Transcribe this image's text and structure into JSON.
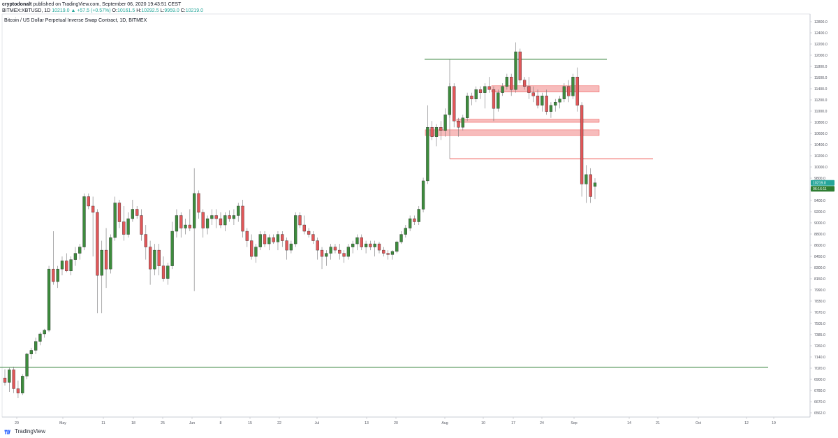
{
  "header": {
    "author": "cryptodonalt",
    "published_text": " published on TradingView.com, September 06, 2020 19:43:51 CEST",
    "symbol_line": "BITMEX:XBTUSD, 1D",
    "last": "10219.0",
    "change": "▲ +57.5 (+0.57%)",
    "o_label": "O:",
    "o_value": "10161.5",
    "h_label": "H:",
    "h_value": "10292.5",
    "l_label": "L:",
    "l_value": "9959.0",
    "c_label": "C:",
    "c_value": "10219.0"
  },
  "footer": {
    "brand": "TradingView"
  },
  "colors": {
    "up": "#26a69a",
    "up_body": "#3d8b3d",
    "down": "#e15759",
    "wick": "#737375",
    "support": "#2e7d32",
    "resistance": "#ef5350",
    "zone_fill": "#f4a6a6"
  },
  "chart_data": {
    "type": "candlestick",
    "title": "Bitcoin / US Dollar Perpetual Inverse Swap Contract, 1D, BITMEX",
    "ylim": [
      6500,
      12900
    ],
    "price_axis": [
      "12800.0",
      "12400.0",
      "12200.0",
      "12000.0",
      "11800.0",
      "11600.0",
      "11400.0",
      "11200.0",
      "11000.0",
      "10800.0",
      "10600.0",
      "10400.0",
      "10200.0",
      "10000.0",
      "9800.0",
      "9600.0",
      "9400.0",
      "9200.0",
      "9000.0",
      "8800.0",
      "8600.0",
      "8450.0",
      "8300.0",
      "8150.0",
      "7990.0",
      "7830.0",
      "7670.0",
      "7505.0",
      "7385.0",
      "7260.0",
      "7140.0",
      "7020.0",
      "6900.0",
      "6780.0",
      "6670.0",
      "6562.0"
    ],
    "x_ticks": [
      "20",
      "May",
      "11",
      "18",
      "25",
      "Jun",
      "8",
      "15",
      "22",
      "Jul",
      "13",
      "20",
      "Aug",
      "10",
      "17",
      "24",
      "Sep",
      "14",
      "21",
      "Oct",
      "12",
      "19"
    ],
    "last_price_label": "10219.0",
    "countdown_label": "06:16:11",
    "candles": [
      [
        7120,
        7260,
        7000,
        7050
      ],
      [
        7050,
        7280,
        6900,
        7250
      ],
      [
        7250,
        7300,
        6880,
        6950
      ],
      [
        6950,
        7080,
        6800,
        6880
      ],
      [
        6880,
        7180,
        6850,
        7150
      ],
      [
        7150,
        7520,
        7100,
        7500
      ],
      [
        7500,
        7600,
        7420,
        7560
      ],
      [
        7560,
        7760,
        7500,
        7700
      ],
      [
        7700,
        7850,
        7640,
        7820
      ],
      [
        7820,
        7900,
        7760,
        7880
      ],
      [
        7880,
        8900,
        7850,
        8850
      ],
      [
        8850,
        9450,
        8600,
        8650
      ],
      [
        8650,
        8900,
        8550,
        8850
      ],
      [
        8850,
        9050,
        8750,
        8980
      ],
      [
        8980,
        9100,
        8800,
        8820
      ],
      [
        8820,
        9050,
        8750,
        9000
      ],
      [
        9000,
        9200,
        8900,
        9100
      ],
      [
        9100,
        9250,
        9000,
        9200
      ],
      [
        9200,
        10050,
        9150,
        10000
      ],
      [
        10000,
        10050,
        9800,
        9850
      ],
      [
        9850,
        10000,
        9050,
        9750
      ],
      [
        9750,
        9800,
        8150,
        8750
      ],
      [
        8750,
        9300,
        8150,
        9150
      ],
      [
        9150,
        9500,
        8550,
        8850
      ],
      [
        8850,
        9400,
        8780,
        9350
      ],
      [
        9350,
        10000,
        9300,
        9900
      ],
      [
        9900,
        9950,
        9500,
        9600
      ],
      [
        9600,
        9850,
        9300,
        9400
      ],
      [
        9400,
        9750,
        9350,
        9650
      ],
      [
        9650,
        9950,
        9600,
        9800
      ],
      [
        9800,
        9850,
        9650,
        9700
      ],
      [
        9700,
        9800,
        9300,
        9400
      ],
      [
        9400,
        9550,
        9000,
        9200
      ],
      [
        9200,
        9300,
        8600,
        8850
      ],
      [
        8850,
        9250,
        8750,
        9150
      ],
      [
        9150,
        9250,
        8750,
        8900
      ],
      [
        8900,
        9050,
        8650,
        8700
      ],
      [
        8700,
        8950,
        8600,
        8900
      ],
      [
        8900,
        9600,
        8850,
        9450
      ],
      [
        9450,
        9800,
        9350,
        9700
      ],
      [
        9700,
        9750,
        9350,
        9500
      ],
      [
        9500,
        9650,
        9400,
        9550
      ],
      [
        9550,
        9800,
        9450,
        9500
      ],
      [
        9500,
        10450,
        8500,
        10050
      ],
      [
        10050,
        10100,
        9650,
        9750
      ],
      [
        9750,
        9800,
        9350,
        9500
      ],
      [
        9500,
        9700,
        9400,
        9650
      ],
      [
        9650,
        9800,
        9550,
        9700
      ],
      [
        9700,
        9800,
        9500,
        9650
      ],
      [
        9650,
        9750,
        9500,
        9550
      ],
      [
        9550,
        9750,
        9450,
        9700
      ],
      [
        9700,
        9780,
        9600,
        9650
      ],
      [
        9650,
        9800,
        9550,
        9700
      ],
      [
        9700,
        9900,
        9600,
        9850
      ],
      [
        9850,
        9950,
        9350,
        9450
      ],
      [
        9450,
        9500,
        9200,
        9300
      ],
      [
        9300,
        9400,
        9000,
        9050
      ],
      [
        9050,
        9250,
        8950,
        9200
      ],
      [
        9200,
        9450,
        9150,
        9400
      ],
      [
        9400,
        9450,
        9200,
        9250
      ],
      [
        9250,
        9400,
        9150,
        9350
      ],
      [
        9350,
        9400,
        9250,
        9280
      ],
      [
        9280,
        9450,
        9150,
        9400
      ],
      [
        9400,
        9450,
        9200,
        9300
      ],
      [
        9300,
        9350,
        9000,
        9150
      ],
      [
        9150,
        9300,
        9100,
        9250
      ],
      [
        9250,
        9750,
        9200,
        9700
      ],
      [
        9700,
        9750,
        9500,
        9550
      ],
      [
        9550,
        9700,
        9400,
        9450
      ],
      [
        9450,
        9500,
        9350,
        9400
      ],
      [
        9400,
        9450,
        9250,
        9300
      ],
      [
        9300,
        9350,
        9000,
        9150
      ],
      [
        9150,
        9200,
        8850,
        9050
      ],
      [
        9050,
        9150,
        8900,
        9100
      ],
      [
        9100,
        9250,
        9000,
        9200
      ],
      [
        9200,
        9250,
        9100,
        9150
      ],
      [
        9150,
        9250,
        9000,
        9100
      ],
      [
        9100,
        9150,
        8950,
        9050
      ],
      [
        9050,
        9250,
        9000,
        9200
      ],
      [
        9200,
        9300,
        9100,
        9250
      ],
      [
        9250,
        9400,
        9150,
        9350
      ],
      [
        9350,
        9400,
        9150,
        9200
      ],
      [
        9200,
        9300,
        9100,
        9250
      ],
      [
        9250,
        9300,
        9150,
        9200
      ],
      [
        9200,
        9300,
        9050,
        9250
      ],
      [
        9250,
        9280,
        9100,
        9150
      ],
      [
        9150,
        9200,
        9050,
        9100
      ],
      [
        9100,
        9150,
        9000,
        9080
      ],
      [
        9080,
        9150,
        9000,
        9130
      ],
      [
        9130,
        9300,
        9100,
        9280
      ],
      [
        9280,
        9450,
        9250,
        9400
      ],
      [
        9400,
        9550,
        9350,
        9500
      ],
      [
        9500,
        9700,
        9450,
        9650
      ],
      [
        9650,
        9700,
        9550,
        9600
      ],
      [
        9600,
        9850,
        9550,
        9800
      ],
      [
        9800,
        10300,
        9750,
        10250
      ],
      [
        10250,
        11450,
        10200,
        11100
      ],
      [
        11100,
        11200,
        10900,
        10950
      ],
      [
        10950,
        11150,
        10800,
        11100
      ],
      [
        11100,
        11200,
        10900,
        11050
      ],
      [
        11050,
        11400,
        10950,
        11300
      ],
      [
        11300,
        11800,
        11250,
        11750
      ],
      [
        11750,
        11800,
        11100,
        11200
      ],
      [
        11200,
        11250,
        10950,
        11100
      ],
      [
        11100,
        11300,
        11050,
        11250
      ],
      [
        11250,
        11650,
        11200,
        11600
      ],
      [
        11600,
        11650,
        11450,
        11550
      ],
      [
        11550,
        11750,
        11500,
        11700
      ],
      [
        11700,
        11750,
        11550,
        11650
      ],
      [
        11650,
        11800,
        11400,
        11750
      ],
      [
        11750,
        11900,
        11650,
        11700
      ],
      [
        11700,
        11750,
        11200,
        11400
      ],
      [
        11400,
        11700,
        11350,
        11650
      ],
      [
        11650,
        11800,
        11600,
        11750
      ],
      [
        11750,
        11950,
        11700,
        11900
      ],
      [
        11900,
        11950,
        11600,
        11700
      ],
      [
        11700,
        12450,
        11650,
        12300
      ],
      [
        12300,
        12350,
        11800,
        11850
      ],
      [
        11850,
        11900,
        11700,
        11750
      ],
      [
        11750,
        11900,
        11550,
        11650
      ],
      [
        11650,
        11750,
        11500,
        11600
      ],
      [
        11600,
        11700,
        11400,
        11450
      ],
      [
        11450,
        11650,
        11350,
        11600
      ],
      [
        11600,
        11700,
        11300,
        11350
      ],
      [
        11350,
        11500,
        11250,
        11450
      ],
      [
        11450,
        11550,
        11350,
        11500
      ],
      [
        11500,
        11600,
        11400,
        11550
      ],
      [
        11550,
        11800,
        11500,
        11750
      ],
      [
        11750,
        11850,
        11500,
        11600
      ],
      [
        11600,
        11950,
        11550,
        11900
      ],
      [
        11900,
        12050,
        11350,
        11450
      ],
      [
        11450,
        11500,
        10000,
        10200
      ],
      [
        10200,
        10500,
        9900,
        10350
      ],
      [
        10350,
        10450,
        9900,
        10000
      ],
      [
        10161.5,
        10292.5,
        9959,
        10219
      ]
    ],
    "series": [
      {
        "kind": "hline",
        "price": 7290,
        "from": 0,
        "to": 1100,
        "color": "#2e7d32"
      },
      {
        "kind": "hline",
        "price": 12180,
        "from": 608,
        "to": 869,
        "color": "#2e7d32"
      },
      {
        "kind": "hline",
        "price": 10600,
        "from": 644,
        "to": 935,
        "color": "#ef5350"
      },
      {
        "kind": "zone",
        "top": 11760,
        "bottom": 11660,
        "from": 704,
        "to": 858
      },
      {
        "kind": "zone",
        "top": 11230,
        "bottom": 11180,
        "from": 654,
        "to": 858
      },
      {
        "kind": "zone",
        "top": 11060,
        "bottom": 10970,
        "from": 609,
        "to": 858
      }
    ]
  }
}
